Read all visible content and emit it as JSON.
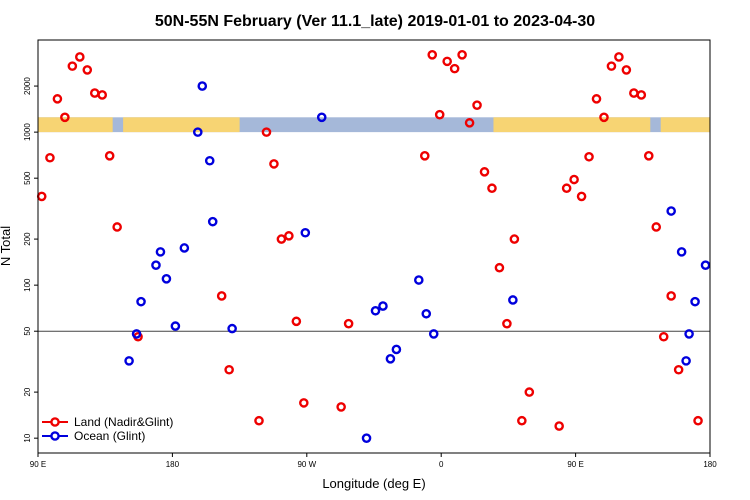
{
  "chart_data": {
    "type": "scatter",
    "title": "50N-55N February (Ver 11.1_late)   2019-01-01 to 2023-04-30",
    "xlabel": "Longitude (deg E)",
    "ylabel": "N Total",
    "x_scale": "linear",
    "y_scale": "log",
    "xlim": [
      90,
      540
    ],
    "ylim": [
      8,
      4000
    ],
    "x_ticks": [
      {
        "value": 90,
        "label": "90 E"
      },
      {
        "value": 180,
        "label": "180"
      },
      {
        "value": 270,
        "label": "90 W"
      },
      {
        "value": 360,
        "label": "0"
      },
      {
        "value": 450,
        "label": "90 E"
      },
      {
        "value": 540,
        "label": "180"
      }
    ],
    "y_ticks": [
      {
        "value": 10,
        "label": "10"
      },
      {
        "value": 20,
        "label": "20"
      },
      {
        "value": 50,
        "label": "50"
      },
      {
        "value": 100,
        "label": "100"
      },
      {
        "value": 200,
        "label": "200"
      },
      {
        "value": 500,
        "label": "500"
      },
      {
        "value": 1000,
        "label": "1000"
      },
      {
        "value": 2000,
        "label": "2000"
      }
    ],
    "reference_line": 50,
    "colors": {
      "land": "#ee0000",
      "ocean": "#0000dd",
      "land_band": "#f7d473",
      "ocean_band": "#a5b8d9"
    },
    "series": [
      {
        "name": "Land (Nadir&Glint)",
        "color": "#ee0000",
        "x": [
          92.5,
          98,
          103,
          108,
          113,
          118,
          123,
          128,
          133,
          138,
          143,
          157,
          213,
          218,
          238,
          243,
          248,
          253,
          258,
          263,
          268,
          293,
          298,
          349,
          354,
          359,
          364,
          369,
          374,
          379,
          384,
          389,
          394,
          399,
          404,
          409,
          414,
          419,
          439,
          444,
          449,
          454,
          459,
          464,
          469,
          474,
          479,
          484,
          489,
          494,
          499,
          504,
          509,
          514,
          519,
          532
        ],
        "y": [
          380,
          680,
          1650,
          1250,
          2700,
          3100,
          2550,
          1800,
          1750,
          700,
          240,
          46,
          85,
          28,
          13,
          1000,
          620,
          200,
          210,
          58,
          17,
          16,
          56,
          700,
          3200,
          1300,
          2900,
          2600,
          3200,
          1150,
          1500,
          550,
          430,
          130,
          56,
          200,
          13,
          20,
          12,
          430,
          490,
          380,
          690,
          1650,
          1250,
          2700,
          3100,
          2550,
          1800,
          1750,
          700,
          240,
          46,
          85,
          28,
          13
        ]
      },
      {
        "name": "Ocean (Glint)",
        "color": "#0000dd",
        "x": [
          151,
          156,
          159,
          169,
          172,
          176,
          182,
          188,
          197,
          200,
          205,
          207,
          220,
          269,
          280,
          310,
          316,
          321,
          326,
          330,
          345,
          350,
          355,
          408,
          514,
          521,
          524,
          526,
          530,
          537
        ],
        "y": [
          32,
          48,
          78,
          135,
          165,
          110,
          54,
          175,
          1000,
          2000,
          650,
          260,
          52,
          220,
          1250,
          10,
          68,
          73,
          33,
          38,
          108,
          65,
          48,
          80,
          305,
          165,
          32,
          48,
          78,
          135
        ]
      }
    ],
    "legend": {
      "position": "bottom-left",
      "entries": [
        "Land (Nadir&Glint)",
        "Ocean (Glint)"
      ]
    }
  }
}
